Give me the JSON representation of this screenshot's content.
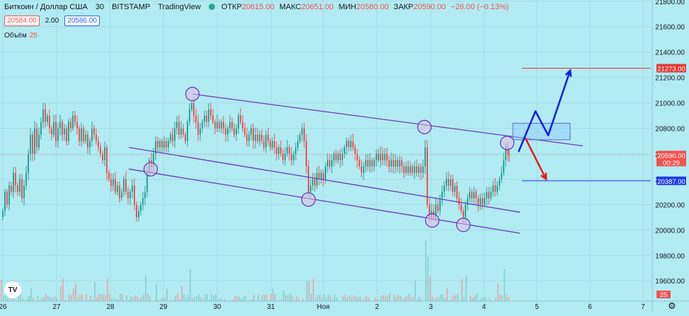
{
  "legend": {
    "symbol": "Биткоин / Доллар США",
    "interval": "30",
    "exchange": "BITSTAMP",
    "source": "TradingView",
    "open_label": "ОТКР",
    "open_value": "20615.00",
    "high_label": "МАКС",
    "high_value": "20651.00",
    "low_label": "МИН",
    "low_value": "20580.00",
    "close_label": "ЗАКР",
    "close_value": "20590.00",
    "change": "−26.00 (−0.13%)"
  },
  "quote": {
    "bid": "20584.00",
    "spread": "2.00",
    "ask": "20586.00"
  },
  "volume_indicator": {
    "label": "Объём",
    "value": "25"
  },
  "colors": {
    "background": "#b2ebf2",
    "up": "#26a69a",
    "down": "#ef5350",
    "channel": "#673ab7",
    "blue_arrow": "#0d1ce6",
    "red_arrow": "#e61a1a",
    "target_line": "#e53935",
    "support_line": "#1e3ae6"
  },
  "chart_data": {
    "type": "candlestick",
    "title": "",
    "xlabel": "",
    "ylabel": "",
    "ylim": [
      19440,
      21810
    ],
    "y_ticks": [
      "21800.00",
      "21600.00",
      "21400.00",
      "21200.00",
      "21000.00",
      "20800.00",
      "20600.00",
      "20400.00",
      "20200.00",
      "20000.00",
      "19800.00",
      "19600.00"
    ],
    "x_ticks": [
      "26",
      "27",
      "28",
      "29",
      "30",
      "31",
      "Ноя",
      "2",
      "3",
      "4",
      "5",
      "6",
      "7"
    ],
    "price_labels": [
      {
        "value": 21273,
        "text": "21273.00",
        "color": "#e53935"
      },
      {
        "value": 20590,
        "text": "20590.00",
        "sub": "00:29",
        "color": "#ef5350"
      },
      {
        "value": 20387,
        "text": "20387.00",
        "color": "#1e3ae6"
      }
    ],
    "volume_label": "25",
    "candles_path": [
      [
        0,
        20100
      ],
      [
        3,
        20150
      ],
      [
        6,
        20300
      ],
      [
        9,
        20200
      ],
      [
        12,
        20350
      ],
      [
        15,
        20300
      ],
      [
        18,
        20450
      ],
      [
        21,
        20350
      ],
      [
        24,
        20300
      ],
      [
        27,
        20400
      ],
      [
        30,
        20250
      ],
      [
        33,
        20350
      ],
      [
        36,
        20450
      ],
      [
        39,
        20600
      ],
      [
        42,
        20750
      ],
      [
        45,
        20600
      ],
      [
        48,
        20800
      ],
      [
        51,
        20650
      ],
      [
        54,
        20750
      ],
      [
        57,
        20850
      ],
      [
        60,
        20950
      ],
      [
        63,
        20850
      ],
      [
        66,
        20900
      ],
      [
        69,
        20800
      ],
      [
        72,
        20750
      ],
      [
        75,
        20850
      ],
      [
        78,
        20700
      ],
      [
        81,
        20800
      ],
      [
        84,
        20850
      ],
      [
        87,
        20750
      ],
      [
        90,
        20800
      ],
      [
        93,
        20700
      ],
      [
        96,
        20850
      ],
      [
        99,
        20800
      ],
      [
        102,
        20900
      ],
      [
        105,
        20850
      ],
      [
        108,
        20800
      ],
      [
        111,
        20700
      ],
      [
        114,
        20800
      ],
      [
        117,
        20700
      ],
      [
        120,
        20750
      ],
      [
        123,
        20650
      ],
      [
        126,
        20700
      ],
      [
        129,
        20800
      ],
      [
        132,
        20750
      ],
      [
        135,
        20700
      ],
      [
        138,
        20650
      ],
      [
        141,
        20600
      ],
      [
        144,
        20550
      ],
      [
        147,
        20650
      ],
      [
        150,
        20450
      ],
      [
        153,
        20400
      ],
      [
        156,
        20350
      ],
      [
        159,
        20400
      ],
      [
        162,
        20300
      ],
      [
        165,
        20350
      ],
      [
        168,
        20250
      ],
      [
        171,
        20300
      ],
      [
        174,
        20400
      ],
      [
        177,
        20300
      ],
      [
        180,
        20250
      ],
      [
        183,
        20300
      ],
      [
        186,
        20350
      ],
      [
        189,
        20200
      ],
      [
        192,
        20100
      ],
      [
        195,
        20150
      ],
      [
        198,
        20200
      ],
      [
        201,
        20250
      ],
      [
        204,
        20300
      ],
      [
        207,
        20450
      ],
      [
        210,
        20550
      ],
      [
        213,
        20500
      ],
      [
        216,
        20600
      ],
      [
        219,
        20700
      ],
      [
        222,
        20650
      ],
      [
        225,
        20700
      ],
      [
        228,
        20650
      ],
      [
        231,
        20700
      ],
      [
        234,
        20650
      ],
      [
        237,
        20700
      ],
      [
        240,
        20750
      ],
      [
        243,
        20700
      ],
      [
        246,
        20800
      ],
      [
        249,
        20850
      ],
      [
        252,
        20750
      ],
      [
        255,
        20800
      ],
      [
        258,
        20750
      ],
      [
        261,
        20700
      ],
      [
        264,
        20850
      ],
      [
        267,
        20950
      ],
      [
        270,
        21000
      ],
      [
        273,
        20900
      ],
      [
        276,
        20850
      ],
      [
        279,
        20750
      ],
      [
        282,
        20800
      ],
      [
        285,
        20850
      ],
      [
        288,
        20900
      ],
      [
        291,
        20850
      ],
      [
        294,
        20950
      ],
      [
        297,
        20900
      ],
      [
        300,
        20850
      ],
      [
        303,
        20800
      ],
      [
        306,
        20850
      ],
      [
        309,
        20800
      ],
      [
        312,
        20850
      ],
      [
        315,
        20800
      ],
      [
        318,
        20750
      ],
      [
        321,
        20800
      ],
      [
        324,
        20850
      ],
      [
        327,
        20800
      ],
      [
        330,
        20750
      ],
      [
        333,
        20800
      ],
      [
        336,
        20900
      ],
      [
        339,
        20850
      ],
      [
        342,
        20800
      ],
      [
        345,
        20750
      ],
      [
        348,
        20700
      ],
      [
        351,
        20750
      ],
      [
        354,
        20800
      ],
      [
        357,
        20700
      ],
      [
        360,
        20750
      ],
      [
        363,
        20700
      ],
      [
        366,
        20750
      ],
      [
        369,
        20700
      ],
      [
        372,
        20650
      ],
      [
        375,
        20750
      ],
      [
        378,
        20700
      ],
      [
        381,
        20650
      ],
      [
        384,
        20700
      ],
      [
        387,
        20650
      ],
      [
        390,
        20600
      ],
      [
        393,
        20650
      ],
      [
        396,
        20600
      ],
      [
        399,
        20550
      ],
      [
        402,
        20600
      ],
      [
        405,
        20650
      ],
      [
        408,
        20600
      ],
      [
        411,
        20550
      ],
      [
        414,
        20600
      ],
      [
        417,
        20650
      ],
      [
        420,
        20700
      ],
      [
        423,
        20750
      ],
      [
        426,
        20800
      ],
      [
        429,
        20700
      ],
      [
        432,
        20500
      ],
      [
        435,
        20300
      ],
      [
        438,
        20350
      ],
      [
        441,
        20400
      ],
      [
        444,
        20350
      ],
      [
        447,
        20450
      ],
      [
        450,
        20400
      ],
      [
        453,
        20450
      ],
      [
        456,
        20400
      ],
      [
        459,
        20500
      ],
      [
        462,
        20550
      ],
      [
        465,
        20500
      ],
      [
        468,
        20550
      ],
      [
        471,
        20600
      ],
      [
        474,
        20550
      ],
      [
        477,
        20600
      ],
      [
        480,
        20550
      ],
      [
        483,
        20600
      ],
      [
        486,
        20650
      ],
      [
        489,
        20700
      ],
      [
        492,
        20650
      ],
      [
        495,
        20700
      ],
      [
        498,
        20650
      ],
      [
        501,
        20600
      ],
      [
        504,
        20550
      ],
      [
        507,
        20500
      ],
      [
        510,
        20450
      ],
      [
        513,
        20500
      ],
      [
        516,
        20550
      ],
      [
        519,
        20500
      ],
      [
        522,
        20550
      ],
      [
        525,
        20500
      ],
      [
        528,
        20550
      ],
      [
        531,
        20600
      ],
      [
        534,
        20550
      ],
      [
        537,
        20600
      ],
      [
        540,
        20550
      ],
      [
        543,
        20600
      ],
      [
        546,
        20550
      ],
      [
        549,
        20500
      ],
      [
        552,
        20550
      ],
      [
        555,
        20500
      ],
      [
        558,
        20550
      ],
      [
        561,
        20500
      ],
      [
        564,
        20550
      ],
      [
        567,
        20500
      ],
      [
        570,
        20450
      ],
      [
        573,
        20500
      ],
      [
        576,
        20450
      ],
      [
        579,
        20500
      ],
      [
        582,
        20450
      ],
      [
        585,
        20500
      ],
      [
        588,
        20450
      ],
      [
        591,
        20500
      ],
      [
        594,
        20450
      ],
      [
        597,
        20500
      ],
      [
        600,
        20650
      ],
      [
        603,
        20200
      ],
      [
        606,
        20100
      ],
      [
        609,
        20150
      ],
      [
        612,
        20100
      ],
      [
        615,
        20200
      ],
      [
        618,
        20150
      ],
      [
        621,
        20250
      ],
      [
        624,
        20300
      ],
      [
        627,
        20350
      ],
      [
        630,
        20400
      ],
      [
        633,
        20350
      ],
      [
        636,
        20400
      ],
      [
        639,
        20300
      ],
      [
        642,
        20350
      ],
      [
        645,
        20250
      ],
      [
        648,
        20200
      ],
      [
        651,
        20150
      ],
      [
        654,
        20100
      ],
      [
        657,
        20200
      ],
      [
        660,
        20250
      ],
      [
        663,
        20300
      ],
      [
        666,
        20250
      ],
      [
        669,
        20300
      ],
      [
        672,
        20250
      ],
      [
        675,
        20200
      ],
      [
        678,
        20250
      ],
      [
        681,
        20200
      ],
      [
        684,
        20250
      ],
      [
        687,
        20300
      ],
      [
        690,
        20250
      ],
      [
        693,
        20300
      ],
      [
        696,
        20350
      ],
      [
        699,
        20300
      ],
      [
        702,
        20350
      ],
      [
        705,
        20400
      ],
      [
        708,
        20450
      ],
      [
        711,
        20550
      ],
      [
        714,
        20650
      ],
      [
        717,
        20600
      ],
      [
        719,
        20590
      ]
    ],
    "volume_spikes": [
      [
        62,
        0.45
      ],
      [
        150,
        0.35
      ],
      [
        204,
        0.4
      ],
      [
        268,
        0.5
      ],
      [
        428,
        0.55
      ],
      [
        434,
        0.6
      ],
      [
        600,
        0.95
      ],
      [
        603,
        0.7
      ],
      [
        606,
        0.4
      ],
      [
        658,
        0.4
      ],
      [
        712,
        0.5
      ]
    ],
    "channel_lines": [
      {
        "name": "upper",
        "x": [
          272,
          824
        ],
        "y": [
          21070,
          20662
        ]
      },
      {
        "name": "middle",
        "x": [
          182,
          735
        ],
        "y": [
          20650,
          20140
        ]
      },
      {
        "name": "lower",
        "x": [
          182,
          735
        ],
        "y": [
          20480,
          19975
        ]
      }
    ],
    "touch_points": [
      {
        "x": 272,
        "y": 21070
      },
      {
        "x": 213,
        "y": 20478
      },
      {
        "x": 436,
        "y": 20240
      },
      {
        "x": 600,
        "y": 20810
      },
      {
        "x": 611,
        "y": 20075
      },
      {
        "x": 655,
        "y": 20040
      },
      {
        "x": 717,
        "y": 20685
      }
    ],
    "target_zone": {
      "x": [
        725,
        806
      ],
      "y": [
        20840,
        20710
      ]
    },
    "blue_arrow": {
      "x": [
        733,
        757,
        775,
        806
      ],
      "y": [
        20615,
        20935,
        20745,
        21255
      ]
    },
    "red_arrow": {
      "x": [
        743,
        772
      ],
      "y": [
        20720,
        20400
      ]
    },
    "horizontal_lines": [
      {
        "name": "target",
        "y": 21273,
        "x_start": 738
      },
      {
        "name": "support",
        "y": 20387,
        "x_start": 738
      }
    ]
  }
}
